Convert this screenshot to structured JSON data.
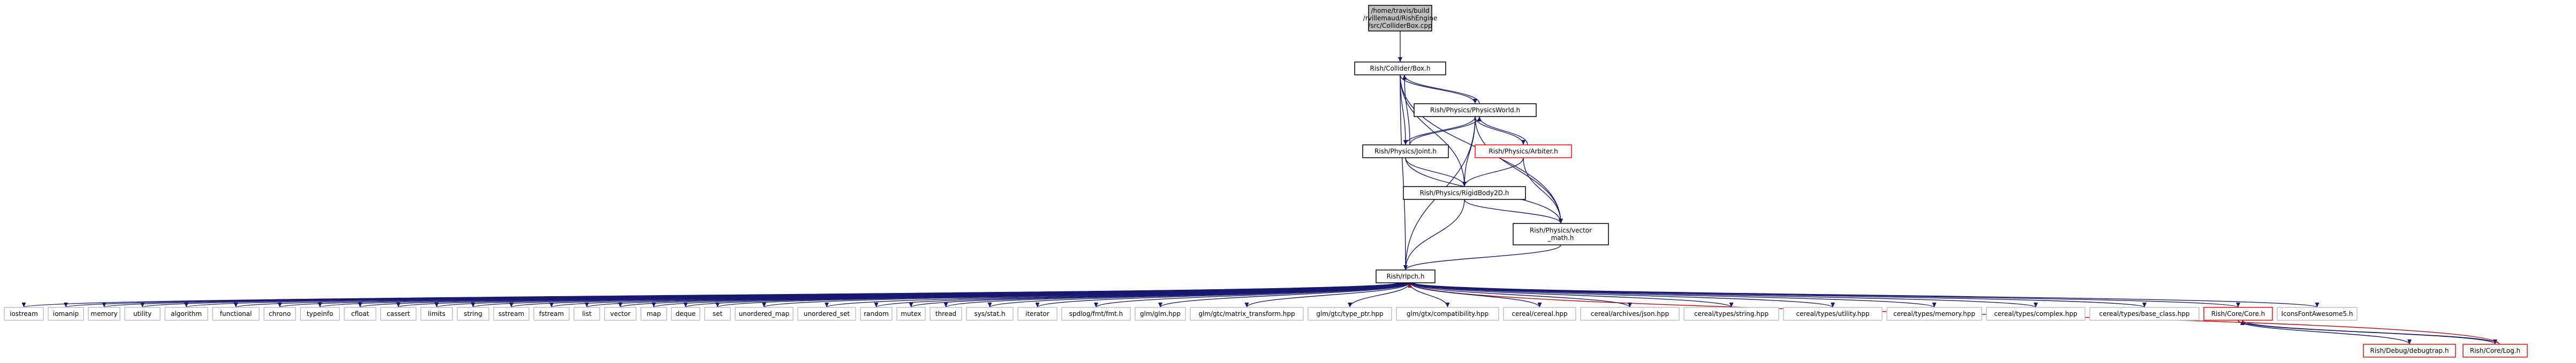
{
  "nodes": [
    {
      "id": "root",
      "lines": [
        "/home/travis/build",
        "/rvillemaud/RishEngine",
        "/src/ColliderBox.cpp"
      ],
      "style": "root"
    },
    {
      "id": "colliderbox",
      "lines": [
        "Rish/Collider/Box.h"
      ],
      "style": "normal"
    },
    {
      "id": "physicsworld",
      "lines": [
        "Rish/Physics/PhysicsWorld.h"
      ],
      "style": "normal"
    },
    {
      "id": "arbiter",
      "lines": [
        "Rish/Physics/Arbiter.h"
      ],
      "style": "red"
    },
    {
      "id": "joint",
      "lines": [
        "Rish/Physics/Joint.h"
      ],
      "style": "normal"
    },
    {
      "id": "rigidbody",
      "lines": [
        "Rish/Physics/RigidBody2D.h"
      ],
      "style": "normal"
    },
    {
      "id": "vectormath",
      "lines": [
        "Rish/Physics/vector",
        "_math.h"
      ],
      "style": "normal"
    },
    {
      "id": "rlpch",
      "lines": [
        "Rish/rlpch.h"
      ],
      "style": "normal"
    },
    {
      "id": "iostream",
      "lines": [
        "iostream"
      ],
      "style": "gray"
    },
    {
      "id": "iomanip",
      "lines": [
        "iomanip"
      ],
      "style": "gray"
    },
    {
      "id": "memory",
      "lines": [
        "memory"
      ],
      "style": "gray"
    },
    {
      "id": "utility",
      "lines": [
        "utility"
      ],
      "style": "gray"
    },
    {
      "id": "algorithm",
      "lines": [
        "algorithm"
      ],
      "style": "gray"
    },
    {
      "id": "functional",
      "lines": [
        "functional"
      ],
      "style": "gray"
    },
    {
      "id": "chrono",
      "lines": [
        "chrono"
      ],
      "style": "gray"
    },
    {
      "id": "typeinfo",
      "lines": [
        "typeinfo"
      ],
      "style": "gray"
    },
    {
      "id": "cfloat",
      "lines": [
        "cfloat"
      ],
      "style": "gray"
    },
    {
      "id": "cassert",
      "lines": [
        "cassert"
      ],
      "style": "gray"
    },
    {
      "id": "limits",
      "lines": [
        "limits"
      ],
      "style": "gray"
    },
    {
      "id": "string",
      "lines": [
        "string"
      ],
      "style": "gray"
    },
    {
      "id": "sstream",
      "lines": [
        "sstream"
      ],
      "style": "gray"
    },
    {
      "id": "fstream",
      "lines": [
        "fstream"
      ],
      "style": "gray"
    },
    {
      "id": "list",
      "lines": [
        "list"
      ],
      "style": "gray"
    },
    {
      "id": "vector",
      "lines": [
        "vector"
      ],
      "style": "gray"
    },
    {
      "id": "map",
      "lines": [
        "map"
      ],
      "style": "gray"
    },
    {
      "id": "deque",
      "lines": [
        "deque"
      ],
      "style": "gray"
    },
    {
      "id": "set",
      "lines": [
        "set"
      ],
      "style": "gray"
    },
    {
      "id": "unordered_map",
      "lines": [
        "unordered_map"
      ],
      "style": "gray"
    },
    {
      "id": "unordered_set",
      "lines": [
        "unordered_set"
      ],
      "style": "gray"
    },
    {
      "id": "random",
      "lines": [
        "random"
      ],
      "style": "gray"
    },
    {
      "id": "mutex",
      "lines": [
        "mutex"
      ],
      "style": "gray"
    },
    {
      "id": "thread",
      "lines": [
        "thread"
      ],
      "style": "gray"
    },
    {
      "id": "sysstat",
      "lines": [
        "sys/stat.h"
      ],
      "style": "gray"
    },
    {
      "id": "iterator",
      "lines": [
        "iterator"
      ],
      "style": "gray"
    },
    {
      "id": "spdlog",
      "lines": [
        "spdlog/fmt/fmt.h"
      ],
      "style": "gray"
    },
    {
      "id": "glm",
      "lines": [
        "glm/glm.hpp"
      ],
      "style": "gray"
    },
    {
      "id": "glm_mt",
      "lines": [
        "glm/gtc/matrix_transform.hpp"
      ],
      "style": "gray"
    },
    {
      "id": "glm_tp",
      "lines": [
        "glm/gtc/type_ptr.hpp"
      ],
      "style": "gray"
    },
    {
      "id": "glm_compat",
      "lines": [
        "glm/gtx/compatibility.hpp"
      ],
      "style": "gray"
    },
    {
      "id": "cereal",
      "lines": [
        "cereal/cereal.hpp"
      ],
      "style": "gray"
    },
    {
      "id": "cereal_json",
      "lines": [
        "cereal/archives/json.hpp"
      ],
      "style": "gray"
    },
    {
      "id": "cereal_string",
      "lines": [
        "cereal/types/string.hpp"
      ],
      "style": "gray"
    },
    {
      "id": "cereal_utility",
      "lines": [
        "cereal/types/utility.hpp"
      ],
      "style": "gray"
    },
    {
      "id": "cereal_memory",
      "lines": [
        "cereal/types/memory.hpp"
      ],
      "style": "gray"
    },
    {
      "id": "cereal_complex",
      "lines": [
        "cereal/types/complex.hpp"
      ],
      "style": "gray"
    },
    {
      "id": "cereal_base",
      "lines": [
        "cereal/types/base_class.hpp"
      ],
      "style": "gray"
    },
    {
      "id": "corecore",
      "lines": [
        "Rish/Core/Core.h"
      ],
      "style": "red"
    },
    {
      "id": "debugbreak",
      "lines": [
        "Rish/Debug/debugtrap.h"
      ],
      "style": "red"
    },
    {
      "id": "corelog",
      "lines": [
        "Rish/Core/Log.h"
      ],
      "style": "red"
    },
    {
      "id": "iconsfont",
      "lines": [
        "IconsFontAwesome5.h"
      ],
      "style": "gray"
    }
  ],
  "edges": [
    {
      "from": "root",
      "to": "colliderbox"
    },
    {
      "from": "colliderbox",
      "to": "physicsworld"
    },
    {
      "from": "colliderbox",
      "to": "joint"
    },
    {
      "from": "colliderbox",
      "to": "rigidbody"
    },
    {
      "from": "colliderbox",
      "to": "vectormath"
    },
    {
      "from": "colliderbox",
      "to": "rlpch"
    },
    {
      "from": "physicsworld",
      "to": "colliderbox"
    },
    {
      "from": "physicsworld",
      "to": "arbiter"
    },
    {
      "from": "physicsworld",
      "to": "joint"
    },
    {
      "from": "physicsworld",
      "to": "rigidbody"
    },
    {
      "from": "physicsworld",
      "to": "vectormath"
    },
    {
      "from": "physicsworld",
      "to": "rlpch"
    },
    {
      "from": "arbiter",
      "to": "physicsworld"
    },
    {
      "from": "arbiter",
      "to": "rigidbody"
    },
    {
      "from": "arbiter",
      "to": "vectormath"
    },
    {
      "from": "joint",
      "to": "physicsworld"
    },
    {
      "from": "joint",
      "to": "colliderbox"
    },
    {
      "from": "joint",
      "to": "rigidbody"
    },
    {
      "from": "joint",
      "to": "vectormath"
    },
    {
      "from": "rigidbody",
      "to": "vectormath"
    },
    {
      "from": "rigidbody",
      "to": "rlpch"
    },
    {
      "from": "vectormath",
      "to": "rlpch"
    },
    {
      "from": "corecore",
      "to": "debugbreak"
    },
    {
      "from": "corecore",
      "to": "corelog"
    },
    {
      "from": "corelog",
      "to": "corecore"
    },
    {
      "from": "corelog",
      "to": "rlpch",
      "red": true
    }
  ],
  "fanout": {
    "from": "rlpch",
    "to": [
      "iostream",
      "iomanip",
      "memory",
      "utility",
      "algorithm",
      "functional",
      "chrono",
      "typeinfo",
      "cfloat",
      "cassert",
      "limits",
      "string",
      "sstream",
      "fstream",
      "list",
      "vector",
      "map",
      "deque",
      "set",
      "unordered_map",
      "unordered_set",
      "random",
      "mutex",
      "thread",
      "sysstat",
      "iterator",
      "spdlog",
      "glm",
      "glm_mt",
      "glm_tp",
      "glm_compat",
      "cereal",
      "cereal_json",
      "cereal_string",
      "cereal_utility",
      "cereal_memory",
      "cereal_complex",
      "cereal_base",
      "corecore",
      "iconsfont"
    ]
  },
  "colors": {
    "edge": "#191970",
    "edge_red": "#c00000",
    "node_border": "#000000",
    "node_border_light": "#bfbfbf",
    "node_border_red": "#ff0000",
    "root_fill": "#bfbfbf",
    "text": "#000000"
  }
}
